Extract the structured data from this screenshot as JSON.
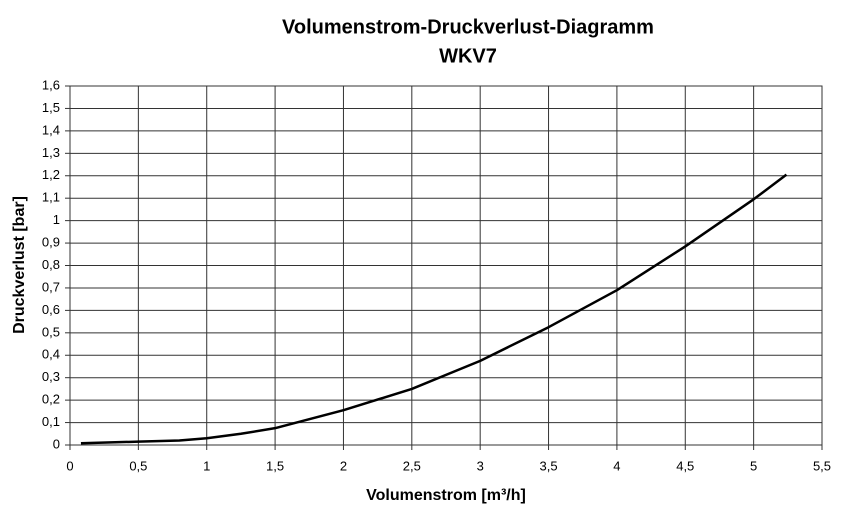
{
  "chart_data": {
    "type": "line",
    "title": "Volumenstrom-Druckverlust-Diagramm",
    "subtitle": "WKV7",
    "x_label": "Volumenstrom  [m³/h]",
    "y_label": "Druckverlust [bar]",
    "x": [
      0.08,
      0.5,
      0.8,
      1.0,
      1.25,
      1.5,
      2.0,
      2.5,
      3.0,
      3.5,
      4.0,
      4.5,
      5.0,
      5.24
    ],
    "values": [
      0.008,
      0.015,
      0.02,
      0.03,
      0.05,
      0.075,
      0.155,
      0.25,
      0.375,
      0.525,
      0.69,
      0.885,
      1.095,
      1.205
    ],
    "color": "#000000",
    "xlim": [
      0,
      5.5
    ],
    "ylim": [
      0,
      1.6
    ],
    "xticks": [
      0,
      {
        "value": 0.5,
        "label": "0,5"
      },
      1,
      {
        "value": 1.5,
        "label": "1,5"
      },
      2,
      {
        "value": 2.5,
        "label": "2,5"
      },
      3,
      {
        "value": 3.5,
        "label": "3,5"
      },
      4,
      {
        "value": 4.5,
        "label": "4,5"
      },
      5,
      {
        "value": 5.5,
        "label": "5,5"
      }
    ],
    "yticks": [
      0,
      {
        "value": 0.1,
        "label": "0,1"
      },
      {
        "value": 0.2,
        "label": "0,2"
      },
      {
        "value": 0.3,
        "label": "0,3"
      },
      {
        "value": 0.4,
        "label": "0,4"
      },
      {
        "value": 0.5,
        "label": "0,5"
      },
      {
        "value": 0.6,
        "label": "0,6"
      },
      {
        "value": 0.7,
        "label": "0,7"
      },
      {
        "value": 0.8,
        "label": "0,8"
      },
      {
        "value": 0.9,
        "label": "0,9"
      },
      1,
      {
        "value": 1.1,
        "label": "1,1"
      },
      {
        "value": 1.2,
        "label": "1,2"
      },
      {
        "value": 1.3,
        "label": "1,3"
      },
      {
        "value": 1.4,
        "label": "1,4"
      },
      {
        "value": 1.5,
        "label": "1,5"
      },
      {
        "value": 1.6,
        "label": "1,6"
      }
    ],
    "grid": true
  }
}
